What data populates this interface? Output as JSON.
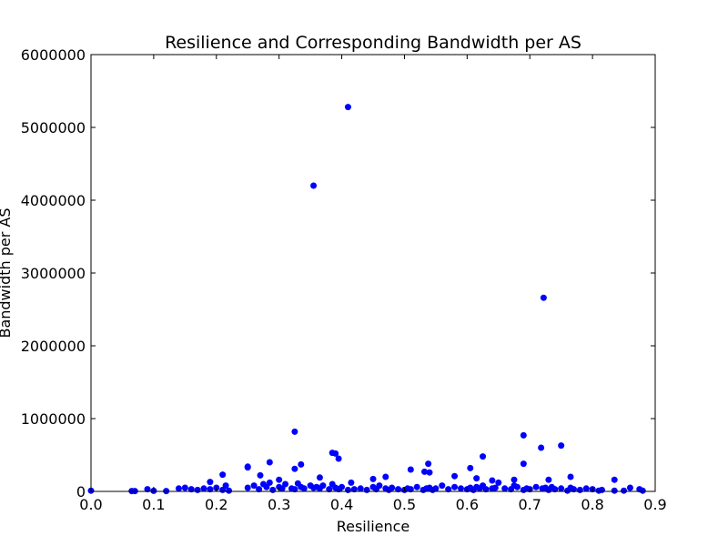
{
  "chart_data": {
    "type": "scatter",
    "title": "Resilience and Corresponding Bandwidth per AS",
    "xlabel": "Resilience",
    "ylabel": "Bandwidth per AS",
    "xlim": [
      0.0,
      0.9
    ],
    "ylim": [
      0,
      6000000
    ],
    "xticks": [
      "0.0",
      "0.1",
      "0.2",
      "0.3",
      "0.4",
      "0.5",
      "0.6",
      "0.7",
      "0.8",
      "0.9"
    ],
    "yticks": [
      "0",
      "1000000",
      "2000000",
      "3000000",
      "4000000",
      "5000000",
      "6000000"
    ],
    "grid": false,
    "legend": "none",
    "marker_color": "#0000ff",
    "series": [
      {
        "x": [
          0.0,
          0.065,
          0.07,
          0.09,
          0.1,
          0.12,
          0.14,
          0.15,
          0.16,
          0.17,
          0.18,
          0.19,
          0.2,
          0.21,
          0.215,
          0.22,
          0.25,
          0.26,
          0.268,
          0.275,
          0.28,
          0.285,
          0.29,
          0.3,
          0.305,
          0.31,
          0.32,
          0.325,
          0.33,
          0.335,
          0.34,
          0.35,
          0.355,
          0.36,
          0.365,
          0.37,
          0.38,
          0.385,
          0.39,
          0.395,
          0.4,
          0.41,
          0.415,
          0.42,
          0.43,
          0.44,
          0.45,
          0.455,
          0.46,
          0.47,
          0.475,
          0.48,
          0.49,
          0.5,
          0.505,
          0.51,
          0.52,
          0.53,
          0.535,
          0.54,
          0.545,
          0.55,
          0.56,
          0.57,
          0.58,
          0.59,
          0.6,
          0.605,
          0.61,
          0.615,
          0.62,
          0.625,
          0.63,
          0.64,
          0.645,
          0.65,
          0.66,
          0.67,
          0.675,
          0.68,
          0.69,
          0.695,
          0.7,
          0.71,
          0.72,
          0.725,
          0.73,
          0.735,
          0.74,
          0.75,
          0.76,
          0.765,
          0.77,
          0.78,
          0.79,
          0.8,
          0.81,
          0.815,
          0.835,
          0.85,
          0.86,
          0.875,
          0.88,
          0.355,
          0.41,
          0.722,
          0.325,
          0.69,
          0.75,
          0.718,
          0.385,
          0.39,
          0.395,
          0.625,
          0.285,
          0.335,
          0.538,
          0.25,
          0.605,
          0.51,
          0.325,
          0.532,
          0.54,
          0.21,
          0.27,
          0.58,
          0.69,
          0.365,
          0.45,
          0.47,
          0.615,
          0.64,
          0.675,
          0.835,
          0.765,
          0.73,
          0.3,
          0.25,
          0.19
        ],
        "y": [
          10000,
          5000,
          5000,
          30000,
          8000,
          5000,
          40000,
          50000,
          30000,
          20000,
          40000,
          30000,
          50000,
          20000,
          80000,
          10000,
          50000,
          80000,
          30000,
          100000,
          60000,
          120000,
          20000,
          60000,
          40000,
          100000,
          40000,
          30000,
          110000,
          60000,
          40000,
          80000,
          50000,
          60000,
          40000,
          80000,
          30000,
          100000,
          50000,
          30000,
          60000,
          20000,
          120000,
          30000,
          40000,
          20000,
          60000,
          30000,
          80000,
          40000,
          20000,
          50000,
          30000,
          20000,
          40000,
          30000,
          60000,
          20000,
          40000,
          50000,
          20000,
          40000,
          80000,
          30000,
          60000,
          40000,
          30000,
          50000,
          20000,
          60000,
          40000,
          80000,
          30000,
          40000,
          50000,
          120000,
          40000,
          30000,
          80000,
          60000,
          20000,
          40000,
          30000,
          60000,
          40000,
          50000,
          20000,
          60000,
          30000,
          40000,
          10000,
          50000,
          30000,
          20000,
          40000,
          30000,
          10000,
          20000,
          10000,
          10000,
          50000,
          30000,
          10000,
          4200000,
          5280000,
          2660000,
          820000,
          770000,
          630000,
          600000,
          530000,
          520000,
          450000,
          480000,
          400000,
          370000,
          380000,
          340000,
          320000,
          300000,
          310000,
          270000,
          260000,
          230000,
          220000,
          210000,
          380000,
          190000,
          170000,
          200000,
          180000,
          150000,
          160000,
          160000,
          200000,
          160000,
          160000,
          330000,
          130000
        ]
      }
    ]
  }
}
